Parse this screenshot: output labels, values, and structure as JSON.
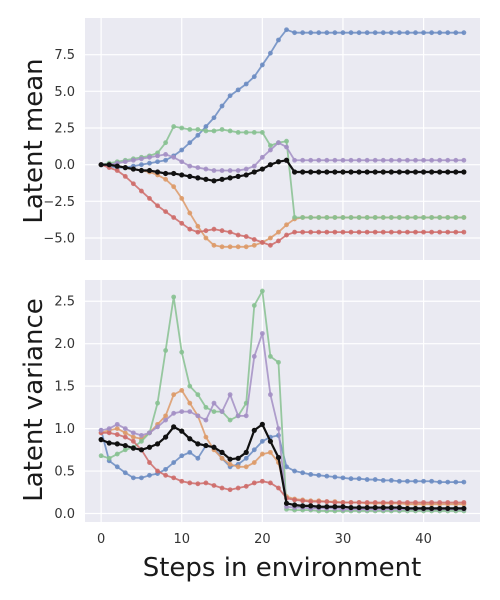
{
  "colors": {
    "panel_bg": "#EAEAF2",
    "grid": "#FFFFFF",
    "blue": "#6B8CC2",
    "orange": "#DD9A68",
    "green": "#87C191",
    "red": "#CE6B69",
    "purple": "#A38FC4",
    "black": "#111111"
  },
  "chart_data": [
    {
      "type": "line",
      "title": "",
      "xlabel": "",
      "ylabel": "Latent mean",
      "xlim": [
        -2,
        47
      ],
      "ylim": [
        -6.5,
        10
      ],
      "yticks": [
        -5.0,
        -2.5,
        0.0,
        2.5,
        5.0,
        7.5
      ],
      "ytick_labels": [
        "−5.0",
        "−2.5",
        "0.0",
        "2.5",
        "5.0",
        "7.5"
      ],
      "xticks": [
        0,
        10,
        20,
        30,
        40
      ],
      "grid": true,
      "series": [
        {
          "color_key": "blue",
          "values": [
            0.0,
            -0.1,
            -0.2,
            -0.2,
            -0.1,
            0.0,
            0.1,
            0.2,
            0.3,
            0.6,
            1.0,
            1.5,
            2.0,
            2.6,
            3.2,
            4.0,
            4.7,
            5.1,
            5.5,
            6.0,
            6.8,
            7.6,
            8.5,
            9.2,
            9.0,
            9.0,
            9.0,
            9.0,
            9.0,
            9.0,
            9.0,
            9.0,
            9.0,
            9.0,
            9.0,
            9.0,
            9.0,
            9.0,
            9.0,
            9.0,
            9.0,
            9.0,
            9.0,
            9.0,
            9.0,
            9.0
          ]
        },
        {
          "color_key": "orange",
          "values": [
            0.0,
            0.0,
            -0.1,
            -0.2,
            -0.3,
            -0.4,
            -0.5,
            -0.7,
            -1.0,
            -1.5,
            -2.3,
            -3.3,
            -4.2,
            -5.0,
            -5.5,
            -5.6,
            -5.6,
            -5.6,
            -5.6,
            -5.5,
            -5.3,
            -5.0,
            -4.6,
            -4.1,
            -3.7,
            -3.6,
            -3.6,
            -3.6,
            -3.6,
            -3.6,
            -3.6,
            -3.6,
            -3.6,
            -3.6,
            -3.6,
            -3.6,
            -3.6,
            -3.6,
            -3.6,
            -3.6,
            -3.6,
            -3.6,
            -3.6,
            -3.6,
            -3.6,
            -3.6
          ]
        },
        {
          "color_key": "green",
          "values": [
            0.0,
            0.1,
            0.2,
            0.3,
            0.4,
            0.5,
            0.6,
            0.8,
            1.5,
            2.6,
            2.5,
            2.4,
            2.4,
            2.3,
            2.3,
            2.4,
            2.3,
            2.2,
            2.2,
            2.2,
            2.2,
            1.3,
            1.5,
            1.6,
            -3.6,
            -3.6,
            -3.6,
            -3.6,
            -3.6,
            -3.6,
            -3.6,
            -3.6,
            -3.6,
            -3.6,
            -3.6,
            -3.6,
            -3.6,
            -3.6,
            -3.6,
            -3.6,
            -3.6,
            -3.6,
            -3.6,
            -3.6,
            -3.6,
            -3.6
          ]
        },
        {
          "color_key": "red",
          "values": [
            0.0,
            -0.2,
            -0.4,
            -0.8,
            -1.3,
            -1.8,
            -2.3,
            -2.8,
            -3.2,
            -3.6,
            -4.0,
            -4.4,
            -4.6,
            -4.5,
            -4.4,
            -4.5,
            -4.6,
            -4.8,
            -4.9,
            -5.1,
            -5.3,
            -5.5,
            -5.2,
            -4.8,
            -4.6,
            -4.6,
            -4.6,
            -4.6,
            -4.6,
            -4.6,
            -4.6,
            -4.6,
            -4.6,
            -4.6,
            -4.6,
            -4.6,
            -4.6,
            -4.6,
            -4.6,
            -4.6,
            -4.6,
            -4.6,
            -4.6,
            -4.6,
            -4.6,
            -4.6
          ]
        },
        {
          "color_key": "purple",
          "values": [
            0.0,
            0.0,
            0.1,
            0.2,
            0.3,
            0.4,
            0.5,
            0.6,
            0.7,
            0.5,
            0.2,
            -0.1,
            -0.2,
            -0.3,
            -0.4,
            -0.4,
            -0.4,
            -0.4,
            -0.3,
            -0.1,
            0.5,
            1.0,
            1.5,
            1.2,
            0.3,
            0.3,
            0.3,
            0.3,
            0.3,
            0.3,
            0.3,
            0.3,
            0.3,
            0.3,
            0.3,
            0.3,
            0.3,
            0.3,
            0.3,
            0.3,
            0.3,
            0.3,
            0.3,
            0.3,
            0.3,
            0.3
          ]
        },
        {
          "color_key": "black",
          "values": [
            0.0,
            0.0,
            -0.1,
            -0.2,
            -0.3,
            -0.4,
            -0.4,
            -0.5,
            -0.6,
            -0.6,
            -0.7,
            -0.8,
            -0.9,
            -1.0,
            -1.1,
            -1.0,
            -0.9,
            -0.8,
            -0.7,
            -0.5,
            -0.3,
            0.0,
            0.2,
            0.3,
            -0.5,
            -0.5,
            -0.5,
            -0.5,
            -0.5,
            -0.5,
            -0.5,
            -0.5,
            -0.5,
            -0.5,
            -0.5,
            -0.5,
            -0.5,
            -0.5,
            -0.5,
            -0.5,
            -0.5,
            -0.5,
            -0.5,
            -0.5,
            -0.5,
            -0.5
          ]
        }
      ]
    },
    {
      "type": "line",
      "title": "",
      "xlabel": "Steps in environment",
      "ylabel": "Latent variance",
      "xlim": [
        -2,
        47
      ],
      "ylim": [
        -0.1,
        2.75
      ],
      "yticks": [
        0.0,
        0.5,
        1.0,
        1.5,
        2.0,
        2.5
      ],
      "ytick_labels": [
        "0.0",
        "0.5",
        "1.0",
        "1.5",
        "2.0",
        "2.5"
      ],
      "xticks": [
        0,
        10,
        20,
        30,
        40
      ],
      "grid": true,
      "series": [
        {
          "color_key": "blue",
          "values": [
            0.98,
            0.62,
            0.55,
            0.48,
            0.42,
            0.42,
            0.45,
            0.47,
            0.52,
            0.6,
            0.68,
            0.72,
            0.65,
            0.8,
            0.78,
            0.65,
            0.55,
            0.58,
            0.65,
            0.75,
            0.85,
            0.9,
            0.92,
            0.55,
            0.5,
            0.48,
            0.46,
            0.45,
            0.44,
            0.43,
            0.42,
            0.41,
            0.41,
            0.4,
            0.4,
            0.39,
            0.39,
            0.38,
            0.38,
            0.38,
            0.38,
            0.38,
            0.37,
            0.37,
            0.37,
            0.37
          ]
        },
        {
          "color_key": "orange",
          "values": [
            0.95,
            0.98,
            1.0,
            0.95,
            0.9,
            0.88,
            0.95,
            1.05,
            1.15,
            1.4,
            1.45,
            1.3,
            1.15,
            0.9,
            0.75,
            0.65,
            0.58,
            0.55,
            0.55,
            0.6,
            0.7,
            0.72,
            0.6,
            0.2,
            0.17,
            0.16,
            0.15,
            0.15,
            0.14,
            0.14,
            0.13,
            0.13,
            0.13,
            0.12,
            0.12,
            0.12,
            0.12,
            0.12,
            0.11,
            0.11,
            0.11,
            0.11,
            0.11,
            0.11,
            0.11,
            0.11
          ]
        },
        {
          "color_key": "green",
          "values": [
            0.68,
            0.65,
            0.7,
            0.75,
            0.78,
            0.85,
            0.95,
            1.3,
            1.92,
            2.55,
            1.9,
            1.5,
            1.4,
            1.25,
            1.2,
            1.2,
            1.1,
            1.15,
            1.3,
            2.45,
            2.62,
            1.85,
            1.78,
            0.05,
            0.04,
            0.04,
            0.04,
            0.03,
            0.03,
            0.03,
            0.03,
            0.03,
            0.03,
            0.03,
            0.03,
            0.03,
            0.03,
            0.03,
            0.03,
            0.03,
            0.03,
            0.03,
            0.03,
            0.03,
            0.03,
            0.03
          ]
        },
        {
          "color_key": "red",
          "values": [
            0.95,
            0.95,
            0.93,
            0.9,
            0.85,
            0.75,
            0.6,
            0.5,
            0.45,
            0.42,
            0.38,
            0.36,
            0.35,
            0.36,
            0.33,
            0.3,
            0.28,
            0.3,
            0.32,
            0.36,
            0.38,
            0.36,
            0.3,
            0.18,
            0.16,
            0.15,
            0.14,
            0.14,
            0.14,
            0.13,
            0.13,
            0.13,
            0.13,
            0.13,
            0.13,
            0.13,
            0.13,
            0.13,
            0.13,
            0.13,
            0.13,
            0.13,
            0.13,
            0.13,
            0.13,
            0.13
          ]
        },
        {
          "color_key": "purple",
          "values": [
            0.98,
            1.0,
            1.05,
            1.0,
            0.95,
            0.92,
            0.95,
            1.02,
            1.1,
            1.18,
            1.2,
            1.2,
            1.15,
            1.1,
            1.3,
            1.2,
            1.4,
            1.15,
            1.15,
            1.85,
            2.12,
            1.4,
            1.0,
            0.08,
            0.07,
            0.07,
            0.06,
            0.06,
            0.06,
            0.06,
            0.05,
            0.05,
            0.05,
            0.05,
            0.05,
            0.05,
            0.05,
            0.05,
            0.05,
            0.05,
            0.05,
            0.05,
            0.05,
            0.05,
            0.05,
            0.05
          ]
        },
        {
          "color_key": "black",
          "values": [
            0.87,
            0.83,
            0.82,
            0.8,
            0.77,
            0.75,
            0.78,
            0.82,
            0.9,
            1.02,
            0.97,
            0.88,
            0.82,
            0.8,
            0.78,
            0.72,
            0.64,
            0.65,
            0.72,
            0.98,
            1.05,
            0.85,
            0.66,
            0.12,
            0.1,
            0.09,
            0.09,
            0.08,
            0.08,
            0.08,
            0.08,
            0.07,
            0.07,
            0.07,
            0.07,
            0.07,
            0.07,
            0.07,
            0.06,
            0.06,
            0.06,
            0.06,
            0.06,
            0.06,
            0.06,
            0.06
          ]
        }
      ]
    }
  ]
}
